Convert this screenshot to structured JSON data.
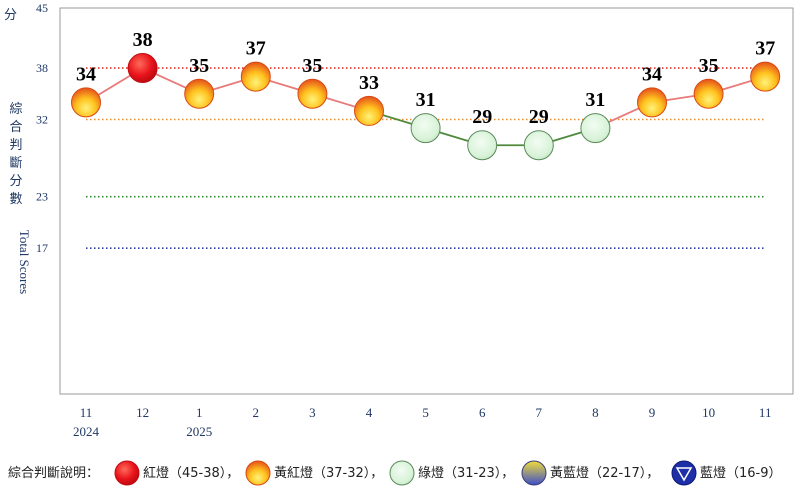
{
  "chart_data": {
    "type": "line",
    "ylabel_top": "分",
    "ylabel_vertical_zh": "綜合判斷分數",
    "ylabel_vertical_en": "Total Scores",
    "ylim": [
      0,
      45
    ],
    "y_ticks": [
      "45",
      "38",
      "32",
      "23",
      "17"
    ],
    "y_tick_values": [
      45,
      38,
      32,
      23,
      17
    ],
    "x": [
      {
        "month": "11",
        "year": "2024"
      },
      {
        "month": "12",
        "year": ""
      },
      {
        "month": "1",
        "year": "2025"
      },
      {
        "month": "2",
        "year": ""
      },
      {
        "month": "3",
        "year": ""
      },
      {
        "month": "4",
        "year": ""
      },
      {
        "month": "5",
        "year": ""
      },
      {
        "month": "6",
        "year": ""
      },
      {
        "month": "7",
        "year": ""
      },
      {
        "month": "8",
        "year": ""
      },
      {
        "month": "9",
        "year": ""
      },
      {
        "month": "10",
        "year": ""
      },
      {
        "month": "11",
        "year": ""
      }
    ],
    "values": [
      34,
      38,
      35,
      37,
      35,
      33,
      31,
      29,
      29,
      31,
      34,
      35,
      37
    ],
    "data_labels": [
      "34",
      "38",
      "35",
      "37",
      "35",
      "33",
      "31",
      "29",
      "29",
      "31",
      "34",
      "35",
      "37"
    ],
    "threshold_lines": [
      {
        "value": 38,
        "color": "#e0302a"
      },
      {
        "value": 32,
        "color": "#e68a2e"
      },
      {
        "value": 23,
        "color": "#2e8b2e"
      },
      {
        "value": 17,
        "color": "#2f3fa0"
      }
    ],
    "signal_colors": {
      "red": "#e8121a",
      "yellow_red": "#f6a020",
      "green": "#d8f2d8",
      "yellow_blue": "#e8d23a",
      "blue": "#1d2fa8"
    },
    "line_colors": {
      "warm": "#e87a7a",
      "cool": "#4f8a3c"
    }
  },
  "legend": {
    "title": "綜合判斷說明：",
    "items": [
      {
        "label": "紅燈（45-38）",
        "sep": "，",
        "icon": "red-signal-icon"
      },
      {
        "label": "黃紅燈（37-32）",
        "sep": "，",
        "icon": "yellow-red-signal-icon"
      },
      {
        "label": "綠燈（31-23）",
        "sep": "，",
        "icon": "green-signal-icon"
      },
      {
        "label": "黃藍燈（22-17）",
        "sep": "，",
        "icon": "yellow-blue-signal-icon"
      },
      {
        "label": "藍燈（16-9）",
        "sep": "",
        "icon": "blue-signal-icon"
      }
    ]
  }
}
